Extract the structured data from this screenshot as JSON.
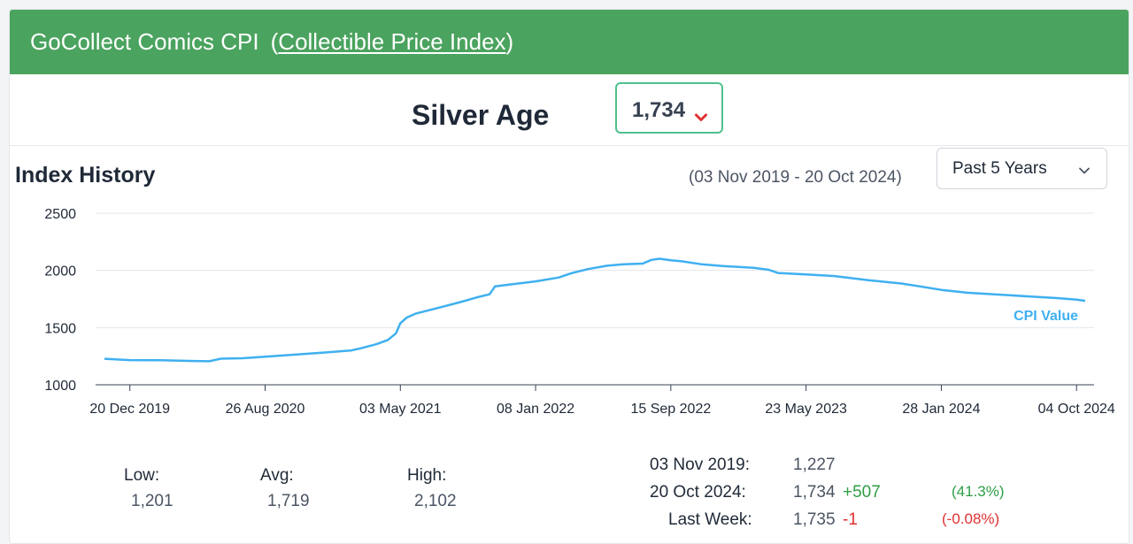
{
  "header": {
    "title": "GoCollect Comics CPI",
    "link_text": "Collectible Price Index"
  },
  "index": {
    "name": "Silver Age",
    "value": "1,734",
    "trend_icon": "chevron-down-icon",
    "trend_color": "#e03131"
  },
  "history": {
    "title": "Index History",
    "range_text": "(03 Nov 2019 - 20 Oct 2024)",
    "period_selected": "Past 5 Years"
  },
  "chart_data": {
    "type": "line",
    "ylim": [
      1000,
      2500
    ],
    "yticks": [
      1000,
      1500,
      2000,
      2500
    ],
    "ytick_labels": [
      "1000",
      "1500",
      "2000",
      "2500"
    ],
    "xticks": [
      "2019-12-20",
      "2020-08-26",
      "2021-05-03",
      "2022-01-08",
      "2022-09-15",
      "2023-05-23",
      "2024-01-28",
      "2024-10-04"
    ],
    "xtick_labels": [
      "20 Dec 2019",
      "26 Aug 2020",
      "03 May 2021",
      "08 Jan 2022",
      "15 Sep 2022",
      "23 May 2023",
      "28 Jan 2024",
      "04 Oct 2024"
    ],
    "xlim": [
      "2019-11-03",
      "2024-10-20"
    ],
    "grid": true,
    "series": [
      {
        "name": "CPI Value",
        "color": "#3fb0f0",
        "points": [
          [
            "2019-11-03",
            1227
          ],
          [
            "2019-12-20",
            1216
          ],
          [
            "2020-02-15",
            1214
          ],
          [
            "2020-04-15",
            1208
          ],
          [
            "2020-05-15",
            1206
          ],
          [
            "2020-06-05",
            1228
          ],
          [
            "2020-07-15",
            1232
          ],
          [
            "2020-08-26",
            1246
          ],
          [
            "2020-10-15",
            1262
          ],
          [
            "2020-12-15",
            1282
          ],
          [
            "2021-02-01",
            1300
          ],
          [
            "2021-02-20",
            1320
          ],
          [
            "2021-03-20",
            1355
          ],
          [
            "2021-04-10",
            1392
          ],
          [
            "2021-04-25",
            1450
          ],
          [
            "2021-05-03",
            1538
          ],
          [
            "2021-05-15",
            1588
          ],
          [
            "2021-06-01",
            1623
          ],
          [
            "2021-07-15",
            1676
          ],
          [
            "2021-08-25",
            1727
          ],
          [
            "2021-09-20",
            1762
          ],
          [
            "2021-10-15",
            1791
          ],
          [
            "2021-10-25",
            1860
          ],
          [
            "2021-11-20",
            1876
          ],
          [
            "2022-01-08",
            1904
          ],
          [
            "2022-02-20",
            1938
          ],
          [
            "2022-03-15",
            1975
          ],
          [
            "2022-04-15",
            2011
          ],
          [
            "2022-05-20",
            2041
          ],
          [
            "2022-06-20",
            2053
          ],
          [
            "2022-07-25",
            2059
          ],
          [
            "2022-08-10",
            2092
          ],
          [
            "2022-08-25",
            2102
          ],
          [
            "2022-09-15",
            2088
          ],
          [
            "2022-10-05",
            2079
          ],
          [
            "2022-11-10",
            2054
          ],
          [
            "2022-12-20",
            2038
          ],
          [
            "2023-02-15",
            2022
          ],
          [
            "2023-03-15",
            2005
          ],
          [
            "2023-04-01",
            1977
          ],
          [
            "2023-05-23",
            1965
          ],
          [
            "2023-07-15",
            1950
          ],
          [
            "2023-09-15",
            1915
          ],
          [
            "2023-11-15",
            1885
          ],
          [
            "2023-12-20",
            1860
          ],
          [
            "2024-01-28",
            1830
          ],
          [
            "2024-03-15",
            1805
          ],
          [
            "2024-05-15",
            1788
          ],
          [
            "2024-07-15",
            1770
          ],
          [
            "2024-09-01",
            1757
          ],
          [
            "2024-10-04",
            1744
          ],
          [
            "2024-10-20",
            1734
          ]
        ]
      }
    ]
  },
  "stats": {
    "low_label": "Low:",
    "low_value": "1,201",
    "avg_label": "Avg:",
    "avg_value": "1,719",
    "high_label": "High:",
    "high_value": "2,102"
  },
  "changes": {
    "start_label": "03 Nov 2019:",
    "start_value": "1,227",
    "end_label": "20 Oct 2024:",
    "end_value": "1,734",
    "end_delta": "+507",
    "end_pct": "(41.3%)",
    "week_label": "Last Week:",
    "week_value": "1,735",
    "week_delta": "-1",
    "week_pct": "(-0.08%)"
  }
}
